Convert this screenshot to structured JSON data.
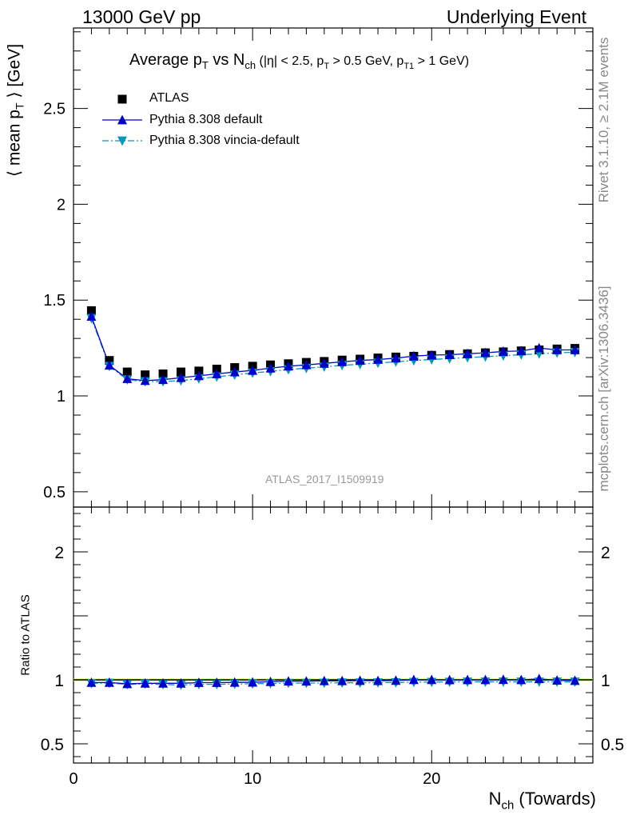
{
  "header": {
    "left": "13000 GeV pp",
    "right": "Underlying Event"
  },
  "side_labels": {
    "rivet": "Rivet 3.1.10, ≥ 2.1M events",
    "mcplots": "mcplots.cern.ch [arXiv:1306.3436]"
  },
  "colors": {
    "atlas": "#000000",
    "default": "#0000cc",
    "vincia": "#0099bb",
    "band": "#ccff66",
    "watermark": "#999999"
  },
  "chart_data": {
    "type": "scatter",
    "title": "Average p_T vs N_ch (|η| < 2.5, p_T > 0.5 GeV, p_T1 > 1 GeV)",
    "title_parts": {
      "a": "Average p",
      "a_sub": "T",
      "b": " vs N",
      "b_sub": "ch",
      "c": " (|η| < 2.5, p",
      "c_sub": "T",
      "d": " > 0.5 GeV, p",
      "d_sub": "T1",
      "e": " > 1 GeV)"
    },
    "watermark": "ATLAS_2017_I1509919",
    "xlabel": "N_ch (Towards)",
    "xlabel_parts": {
      "main": "N",
      "sub": "ch",
      "rest": " (Towards)"
    },
    "ylabel": "⟨ mean p_T ⟩ [GeV]",
    "ylabel_parts": {
      "pre": "⟨ mean p",
      "sub": "T",
      "post": " ⟩ [GeV]"
    },
    "ratio_ylabel": "Ratio to ATLAS",
    "xlim": [
      0,
      29
    ],
    "ylim": [
      0.42,
      2.92
    ],
    "ratio_ylim": [
      0.35,
      2.35
    ],
    "xticks": [
      0,
      10,
      20
    ],
    "xtick_labels": [
      "0",
      "10",
      "20"
    ],
    "yticks": [
      0.5,
      1,
      1.5,
      2,
      2.5
    ],
    "ytick_labels": [
      "0.5",
      "1",
      "1.5",
      "2",
      "2.5"
    ],
    "ratio_yticks": [
      0.5,
      1,
      2
    ],
    "ratio_ytick_labels": [
      "0.5",
      "1",
      "2"
    ],
    "legend_position": "top-left",
    "x": [
      1,
      2,
      3,
      4,
      5,
      6,
      7,
      8,
      9,
      10,
      11,
      12,
      13,
      14,
      15,
      16,
      17,
      18,
      19,
      20,
      21,
      22,
      23,
      24,
      25,
      26,
      27,
      28
    ],
    "series": [
      {
        "name": "ATLAS",
        "marker": "square",
        "values": [
          1.445,
          1.185,
          1.125,
          1.11,
          1.115,
          1.125,
          1.13,
          1.14,
          1.148,
          1.155,
          1.162,
          1.168,
          1.175,
          1.18,
          1.187,
          1.192,
          1.198,
          1.203,
          1.207,
          1.212,
          1.216,
          1.22,
          1.225,
          1.23,
          1.235,
          1.24,
          1.245,
          1.248
        ]
      },
      {
        "name": "Pythia 8.308 default",
        "marker": "triangle-up",
        "line": "solid",
        "values": [
          1.415,
          1.16,
          1.09,
          1.08,
          1.085,
          1.095,
          1.105,
          1.115,
          1.125,
          1.133,
          1.145,
          1.155,
          1.162,
          1.17,
          1.178,
          1.185,
          1.19,
          1.197,
          1.208,
          1.213,
          1.215,
          1.22,
          1.225,
          1.232,
          1.235,
          1.25,
          1.24,
          1.24
        ]
      },
      {
        "name": "Pythia 8.308 vincia-default",
        "marker": "triangle-down",
        "line": "dash-dot",
        "values": [
          1.405,
          1.155,
          1.085,
          1.075,
          1.075,
          1.08,
          1.09,
          1.1,
          1.11,
          1.12,
          1.128,
          1.138,
          1.145,
          1.152,
          1.16,
          1.165,
          1.172,
          1.178,
          1.185,
          1.19,
          1.195,
          1.2,
          1.205,
          1.21,
          1.215,
          1.22,
          1.225,
          1.228
        ]
      }
    ],
    "ratio_series": [
      {
        "name": "Pythia 8.308 default",
        "values": [
          0.979,
          0.979,
          0.969,
          0.973,
          0.973,
          0.973,
          0.978,
          0.978,
          0.98,
          0.981,
          0.985,
          0.989,
          0.989,
          0.992,
          0.992,
          0.994,
          0.993,
          0.995,
          1.001,
          1.001,
          0.999,
          1.0,
          1.0,
          1.002,
          1.0,
          1.008,
          0.996,
          0.994
        ]
      },
      {
        "name": "Pythia 8.308 vincia-default",
        "values": [
          0.972,
          0.975,
          0.964,
          0.968,
          0.964,
          0.96,
          0.965,
          0.965,
          0.967,
          0.97,
          0.971,
          0.974,
          0.974,
          0.976,
          0.977,
          0.977,
          0.978,
          0.979,
          0.982,
          0.982,
          0.983,
          0.984,
          0.984,
          0.984,
          0.984,
          0.984,
          0.984,
          0.984
        ]
      }
    ]
  }
}
